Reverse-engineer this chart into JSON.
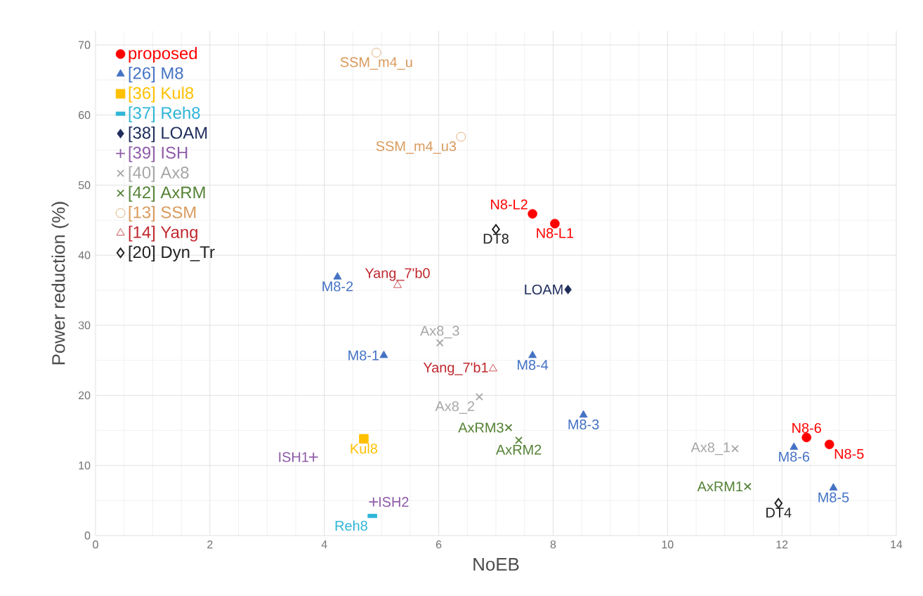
{
  "chart_data": {
    "type": "scatter",
    "xlabel": "NoEB",
    "ylabel": "Power reduction (%)",
    "xlim": [
      0,
      14
    ],
    "ylim": [
      0,
      72
    ],
    "xticks": [
      0,
      2,
      4,
      6,
      8,
      10,
      12,
      14
    ],
    "yticks": [
      0,
      10,
      20,
      30,
      40,
      50,
      60,
      70
    ],
    "grid": true,
    "legend": "top left",
    "series": [
      {
        "name": "proposed",
        "color": "#ff0000",
        "marker": "circle",
        "x": [
          7.64,
          8.03,
          12.43,
          12.83
        ],
        "values": [
          45.9,
          44.5,
          14.0,
          13.0
        ]
      },
      {
        "name": "[26] M8",
        "color": "#4472c4",
        "marker": "triangle",
        "x": [
          4.23,
          5.04,
          8.53,
          7.64,
          12.9,
          12.21
        ],
        "values": [
          36.9,
          25.7,
          17.2,
          25.7,
          6.8,
          12.6
        ]
      },
      {
        "name": "[36] Kul8",
        "color": "#ffc000",
        "marker": "square",
        "x": [
          4.69
        ],
        "values": [
          13.8
        ]
      },
      {
        "name": "[37] Reh8",
        "color": "#2fb5d8",
        "marker": "square",
        "x": [
          4.84
        ],
        "values": [
          2.8
        ]
      },
      {
        "name": "[38] LOAM",
        "color": "#1f2d5c",
        "marker": "diamond",
        "x": [
          8.26
        ],
        "values": [
          35.1
        ]
      },
      {
        "name": "[39] ISH",
        "color": "#8e5ba8",
        "marker": "plus",
        "x": [
          3.81,
          4.86
        ],
        "values": [
          11.2,
          4.8
        ]
      },
      {
        "name": "[40] Ax8",
        "color": "#a6a6a6",
        "marker": "cross",
        "x": [
          11.18,
          6.71,
          6.02
        ],
        "values": [
          12.4,
          19.8,
          27.5
        ]
      },
      {
        "name": "[42] AxRM",
        "color": "#548235",
        "marker": "cross",
        "x": [
          11.4,
          7.4,
          7.22
        ],
        "values": [
          7.0,
          13.6,
          15.4
        ]
      },
      {
        "name": "[13] SSM",
        "color": "#d99a5b",
        "marker": "circle",
        "x": [
          4.91,
          6.39
        ],
        "values": [
          68.9,
          56.9
        ]
      },
      {
        "name": "[14] Yang",
        "color": "#c0282f",
        "marker": "triangle",
        "x": [
          5.28,
          6.95
        ],
        "values": [
          35.7,
          23.8
        ]
      },
      {
        "name": "[20] Dyn_Tr",
        "color": "#222222",
        "marker": "diamond",
        "x": [
          7.0,
          11.94
        ],
        "values": [
          43.7,
          4.6
        ]
      }
    ],
    "annotations": [
      {
        "text": "SSM_m4_u",
        "x": 4.91,
        "y": 68.9
      },
      {
        "text": "SSM_m4_u3",
        "x": 6.39,
        "y": 56.9
      },
      {
        "text": "N8-L2",
        "x": 7.64,
        "y": 45.9
      },
      {
        "text": "N8-L1",
        "x": 8.03,
        "y": 44.5
      },
      {
        "text": "DT8",
        "x": 7.0,
        "y": 43.7
      },
      {
        "text": "LOAM",
        "x": 8.26,
        "y": 35.1
      },
      {
        "text": "Yang_7'b0",
        "x": 5.28,
        "y": 35.7
      },
      {
        "text": "M8-2",
        "x": 4.23,
        "y": 36.9
      },
      {
        "text": "Ax8_3",
        "x": 6.02,
        "y": 27.5
      },
      {
        "text": "M8-1",
        "x": 5.04,
        "y": 25.7
      },
      {
        "text": "Yang_7'b1",
        "x": 6.95,
        "y": 23.8
      },
      {
        "text": "M8-4",
        "x": 7.64,
        "y": 25.7
      },
      {
        "text": "Ax8_2",
        "x": 6.71,
        "y": 19.8
      },
      {
        "text": "AxRM3",
        "x": 7.22,
        "y": 15.4
      },
      {
        "text": "AxRM2",
        "x": 7.4,
        "y": 13.6
      },
      {
        "text": "M8-3",
        "x": 8.53,
        "y": 17.2
      },
      {
        "text": "Kul8",
        "x": 4.69,
        "y": 13.8
      },
      {
        "text": "ISH1",
        "x": 3.81,
        "y": 11.2
      },
      {
        "text": "ISH2",
        "x": 4.86,
        "y": 4.8
      },
      {
        "text": "Reh8",
        "x": 4.84,
        "y": 2.8
      },
      {
        "text": "Ax8_1",
        "x": 11.18,
        "y": 12.4
      },
      {
        "text": "AxRM1",
        "x": 11.4,
        "y": 7.0
      },
      {
        "text": "N8-6",
        "x": 12.43,
        "y": 14.0
      },
      {
        "text": "M8-6",
        "x": 12.21,
        "y": 12.6
      },
      {
        "text": "N8-5",
        "x": 12.83,
        "y": 13.0
      },
      {
        "text": "M8-5",
        "x": 12.9,
        "y": 6.8
      },
      {
        "text": "DT4",
        "x": 11.94,
        "y": 4.6
      }
    ]
  }
}
